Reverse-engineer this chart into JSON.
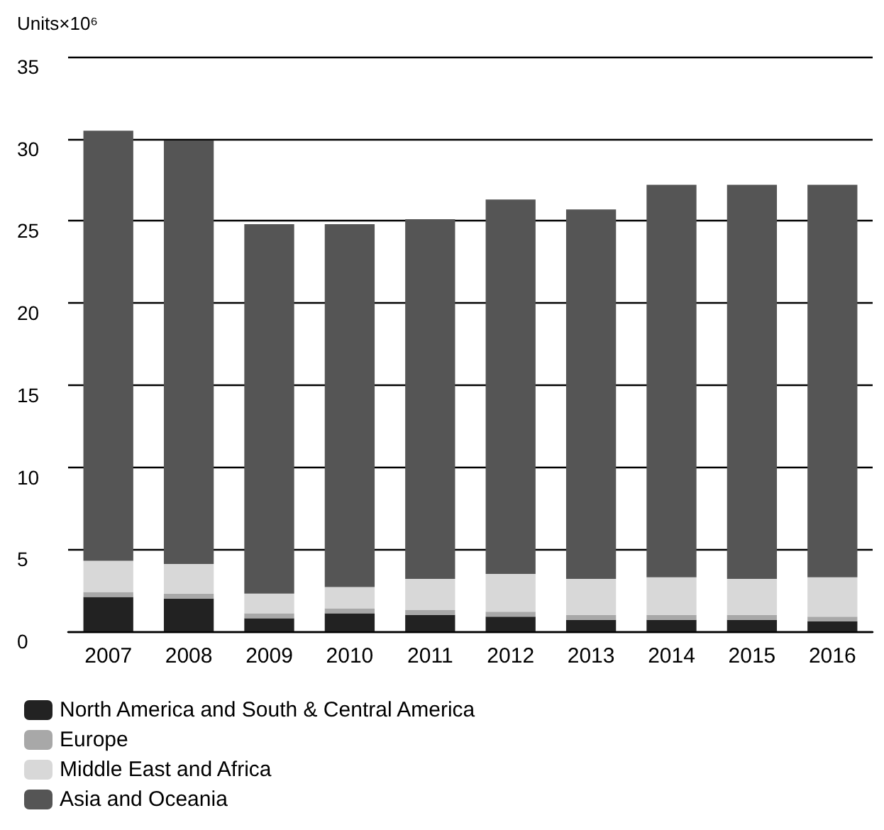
{
  "chart_data": {
    "type": "bar",
    "stacked": true,
    "ylabel": "Units×10⁶",
    "categories": [
      "2007",
      "2008",
      "2009",
      "2010",
      "2011",
      "2012",
      "2013",
      "2014",
      "2015",
      "2016"
    ],
    "series": [
      {
        "name": "North America and South & Central America",
        "color": "#222222",
        "values": [
          2.1,
          2.0,
          0.8,
          1.1,
          1.0,
          0.9,
          0.7,
          0.7,
          0.7,
          0.6
        ]
      },
      {
        "name": "Europe",
        "color": "#a8a8a8",
        "values": [
          0.3,
          0.3,
          0.3,
          0.3,
          0.3,
          0.3,
          0.3,
          0.3,
          0.3,
          0.3
        ]
      },
      {
        "name": "Middle East and Africa",
        "color": "#d8d8d8",
        "values": [
          1.9,
          1.8,
          1.2,
          1.3,
          1.9,
          2.3,
          2.2,
          2.3,
          2.2,
          2.4
        ]
      },
      {
        "name": "Asia and Oceania",
        "color": "#555555",
        "values": [
          26.2,
          25.8,
          22.5,
          22.1,
          21.9,
          22.8,
          22.5,
          23.9,
          24.0,
          23.9
        ]
      }
    ],
    "ylim": [
      0,
      35
    ],
    "yticks": [
      0,
      5,
      10,
      15,
      20,
      25,
      30,
      35
    ],
    "grid": "y",
    "legend": "bottom left"
  }
}
